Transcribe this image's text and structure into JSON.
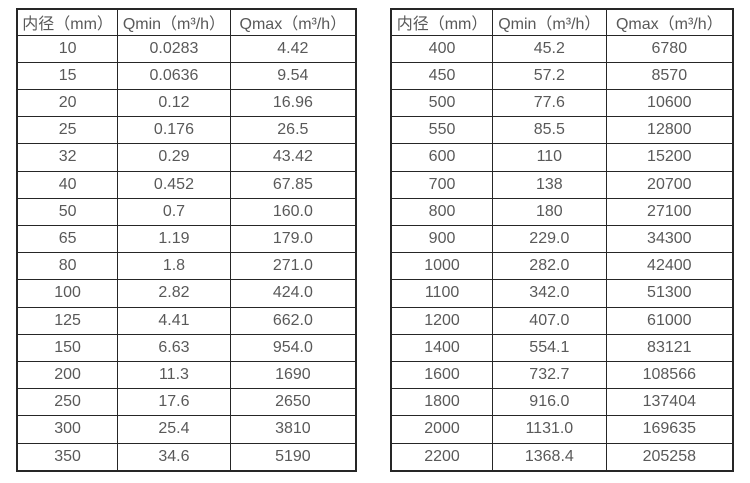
{
  "colors": {
    "background": "#ffffff",
    "table_border": "#262626",
    "text": "#595959"
  },
  "chart_data": [
    {
      "type": "table",
      "name": "flow-range-table-small-diameters",
      "columns": [
        "内径（mm）",
        "Qmin（m³/h）",
        "Qmax（m³/h）"
      ],
      "rows": [
        [
          "10",
          "0.0283",
          "4.42"
        ],
        [
          "15",
          "0.0636",
          "9.54"
        ],
        [
          "20",
          "0.12",
          "16.96"
        ],
        [
          "25",
          "0.176",
          "26.5"
        ],
        [
          "32",
          "0.29",
          "43.42"
        ],
        [
          "40",
          "0.452",
          "67.85"
        ],
        [
          "50",
          "0.7",
          "160.0"
        ],
        [
          "65",
          "1.19",
          "179.0"
        ],
        [
          "80",
          "1.8",
          "271.0"
        ],
        [
          "100",
          "2.82",
          "424.0"
        ],
        [
          "125",
          "4.41",
          "662.0"
        ],
        [
          "150",
          "6.63",
          "954.0"
        ],
        [
          "200",
          "11.3",
          "1690"
        ],
        [
          "250",
          "17.6",
          "2650"
        ],
        [
          "300",
          "25.4",
          "3810"
        ],
        [
          "350",
          "34.6",
          "5190"
        ]
      ]
    },
    {
      "type": "table",
      "name": "flow-range-table-large-diameters",
      "columns": [
        "内径（mm）",
        "Qmin（m³/h）",
        "Qmax（m³/h）"
      ],
      "rows": [
        [
          "400",
          "45.2",
          "6780"
        ],
        [
          "450",
          "57.2",
          "8570"
        ],
        [
          "500",
          "77.6",
          "10600"
        ],
        [
          "550",
          "85.5",
          "12800"
        ],
        [
          "600",
          "110",
          "15200"
        ],
        [
          "700",
          "138",
          "20700"
        ],
        [
          "800",
          "180",
          "27100"
        ],
        [
          "900",
          "229.0",
          "34300"
        ],
        [
          "1000",
          "282.0",
          "42400"
        ],
        [
          "1100",
          "342.0",
          "51300"
        ],
        [
          "1200",
          "407.0",
          "61000"
        ],
        [
          "1400",
          "554.1",
          "83121"
        ],
        [
          "1600",
          "732.7",
          "108566"
        ],
        [
          "1800",
          "916.0",
          "137404"
        ],
        [
          "2000",
          "1131.0",
          "169635"
        ],
        [
          "2200",
          "1368.4",
          "205258"
        ]
      ]
    }
  ]
}
